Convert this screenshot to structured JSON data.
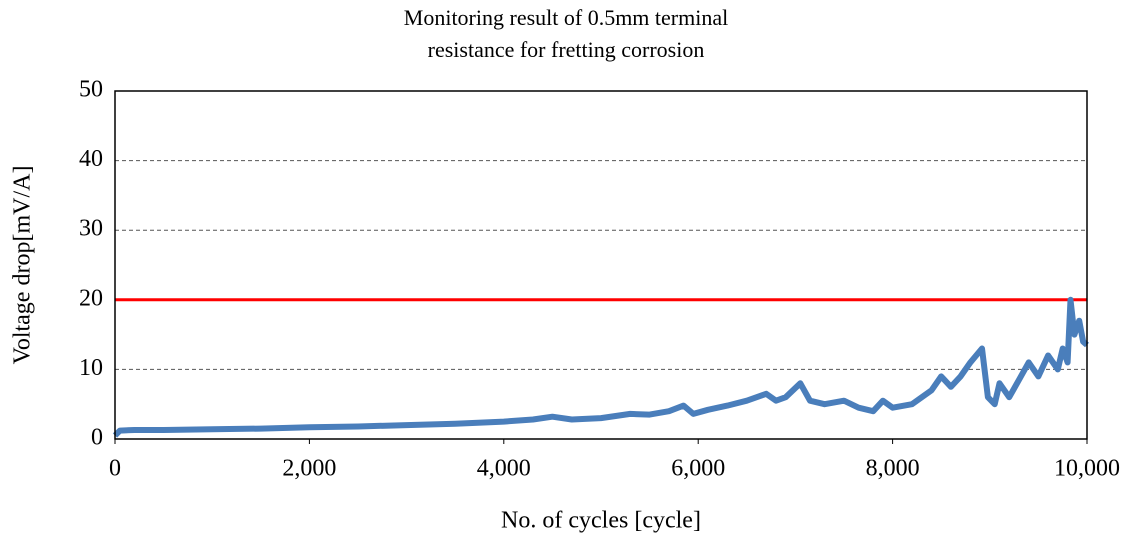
{
  "chart_data": {
    "type": "line",
    "title": [
      "Monitoring result of 0.5mm terminal",
      "resistance for fretting corrosion"
    ],
    "x_label": "No. of cycles  [cycle]",
    "y_label": "Voltage drop[mV/A]",
    "x": [
      0,
      50,
      200,
      500,
      1000,
      1500,
      2000,
      2500,
      3000,
      3500,
      4000,
      4300,
      4500,
      4700,
      5000,
      5300,
      5500,
      5700,
      5850,
      5950,
      6100,
      6300,
      6500,
      6700,
      6800,
      6900,
      7050,
      7150,
      7300,
      7500,
      7650,
      7800,
      7900,
      8000,
      8200,
      8400,
      8500,
      8600,
      8700,
      8800,
      8920,
      8980,
      9050,
      9100,
      9200,
      9300,
      9400,
      9500,
      9600,
      9700,
      9750,
      9800,
      9830,
      9870,
      9920,
      9960,
      10000
    ],
    "series": [
      {
        "color": "#4a7ebb",
        "values": [
          0.5,
          1.2,
          1.3,
          1.3,
          1.4,
          1.5,
          1.7,
          1.8,
          2.0,
          2.2,
          2.5,
          2.8,
          3.2,
          2.8,
          3.0,
          3.6,
          3.5,
          4.0,
          4.8,
          3.6,
          4.2,
          4.8,
          5.5,
          6.5,
          5.5,
          6.0,
          8.0,
          5.5,
          5.0,
          5.5,
          4.5,
          4.0,
          5.5,
          4.5,
          5.0,
          7.0,
          9.0,
          7.5,
          9.0,
          11.0,
          13.0,
          6.0,
          5.0,
          8.0,
          6.0,
          8.5,
          11.0,
          9.0,
          12.0,
          10.0,
          13.0,
          11.0,
          20.0,
          15.0,
          17.0,
          14.0,
          13.5
        ]
      }
    ],
    "reference_line": {
      "value": 20,
      "color": "#ff0000"
    },
    "xlim": [
      0,
      10000
    ],
    "xticks": [
      0,
      {
        "value": 2000,
        "label": "2,000"
      },
      {
        "value": 4000,
        "label": "4,000"
      },
      {
        "value": 6000,
        "label": "6,000"
      },
      {
        "value": 8000,
        "label": "8,000"
      },
      {
        "value": 10000,
        "label": "10,000"
      }
    ],
    "ylim": [
      0,
      50
    ],
    "yticks": [
      0,
      10,
      20,
      30,
      40,
      50
    ],
    "grid": true
  }
}
